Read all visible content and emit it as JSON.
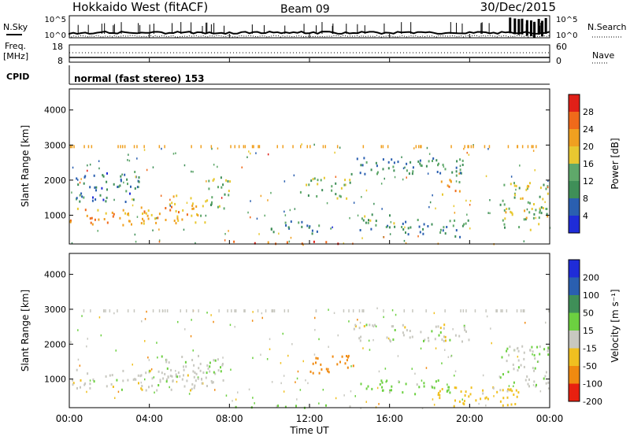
{
  "header": {
    "station": "Hokkaido West (fitACF)",
    "beam": "Beam 09",
    "date": "30/Dec/2015"
  },
  "params": {
    "nsky_label": "N.Sky",
    "nsky_ticks": [
      "10^5",
      "10^0"
    ],
    "nsearch_label": "N.Search",
    "nsearch_ticks": [
      "10^5",
      "10^0"
    ],
    "freq_label": "Freq.",
    "freq_unit": "[MHz]",
    "freq_ticks": [
      "18",
      "8"
    ],
    "nave_label": "Nave",
    "nave_ticks": [
      "60",
      "0"
    ],
    "cpid_label": "CPID",
    "cpid_value": "normal (fast stereo) 153"
  },
  "axes": {
    "time_ticks": [
      "00:00",
      "04:00",
      "08:00",
      "12:00",
      "16:00",
      "20:00",
      "00:00"
    ],
    "xlabel": "Time UT",
    "range_ticks": [
      "1000",
      "2000",
      "3000",
      "4000"
    ],
    "ylabel": "Slant Range [km]"
  },
  "colorbars": {
    "power": {
      "label": "Power [dB]",
      "ticks": [
        "4",
        "8",
        "12",
        "16",
        "20",
        "24",
        "28"
      ],
      "colors": [
        "#1f2cd8",
        "#2a5fb0",
        "#3f8f58",
        "#5fa86a",
        "#e8c830",
        "#f0a020",
        "#f06a1a",
        "#e02018"
      ]
    },
    "velocity": {
      "label": "Velocity [m s⁻¹]",
      "ticks": [
        "200",
        "100",
        "50",
        "15",
        "-15",
        "-50",
        "-100",
        "-200"
      ],
      "colors": [
        "#1f2cd8",
        "#2a5fb0",
        "#3f8f58",
        "#6cd040",
        "#c8c8c0",
        "#f0c020",
        "#f08a10",
        "#e82010"
      ]
    }
  },
  "chart_data": [
    {
      "type": "heatmap",
      "title": "Power",
      "xlabel": "Time UT",
      "ylabel": "Slant Range [km]",
      "xlim": [
        "00:00",
        "24:00"
      ],
      "ylim": [
        180,
        4600
      ],
      "zlabel": "Power [dB]",
      "zlim": [
        0,
        32
      ],
      "bands": [
        {
          "t0": 0.0,
          "t1": 4.5,
          "r0": 700,
          "r1": 1250,
          "value": 22
        },
        {
          "t0": 4.5,
          "t1": 6.8,
          "r0": 800,
          "r1": 1600,
          "value": 20
        },
        {
          "t0": 6.8,
          "t1": 8.0,
          "r0": 1200,
          "r1": 2200,
          "value": 14
        },
        {
          "t0": 0.3,
          "t1": 3.5,
          "r0": 1400,
          "r1": 2300,
          "value": 8
        },
        {
          "t0": 8.0,
          "t1": 14.0,
          "r0": 200,
          "r1": 280,
          "value": 26
        },
        {
          "t0": 10.0,
          "t1": 12.5,
          "r0": 500,
          "r1": 900,
          "value": 10
        },
        {
          "t0": 11.5,
          "t1": 14.0,
          "r0": 1500,
          "r1": 2100,
          "value": 14
        },
        {
          "t0": 14.0,
          "t1": 20.0,
          "r0": 2200,
          "r1": 2700,
          "value": 10
        },
        {
          "t0": 14.5,
          "t1": 16.5,
          "r0": 600,
          "r1": 1100,
          "value": 12
        },
        {
          "t0": 16.5,
          "t1": 20.0,
          "r0": 400,
          "r1": 900,
          "value": 10
        },
        {
          "t0": 18.5,
          "t1": 19.5,
          "r0": 1600,
          "r1": 2200,
          "value": 20
        },
        {
          "t0": 21.5,
          "t1": 24.0,
          "r0": 600,
          "r1": 2000,
          "value": 16
        }
      ]
    },
    {
      "type": "heatmap",
      "title": "Velocity",
      "xlabel": "Time UT",
      "ylabel": "Slant Range [km]",
      "xlim": [
        "00:00",
        "24:00"
      ],
      "ylim": [
        180,
        4600
      ],
      "zlabel": "Velocity [m s-1]",
      "zlim": [
        -250,
        250
      ],
      "bands": [
        {
          "t0": 0.0,
          "t1": 7.0,
          "r0": 700,
          "r1": 1300,
          "value": 0
        },
        {
          "t0": 4.5,
          "t1": 8.0,
          "r0": 900,
          "r1": 1700,
          "value": 5
        },
        {
          "t0": 8.0,
          "t1": 14.0,
          "r0": 200,
          "r1": 280,
          "value": 30
        },
        {
          "t0": 12.0,
          "t1": 14.5,
          "r0": 1200,
          "r1": 1700,
          "value": -80
        },
        {
          "t0": 14.0,
          "t1": 20.0,
          "r0": 2100,
          "r1": 2600,
          "value": 0
        },
        {
          "t0": 14.5,
          "t1": 19.0,
          "r0": 600,
          "r1": 1000,
          "value": 30
        },
        {
          "t0": 18.0,
          "t1": 22.5,
          "r0": 200,
          "r1": 800,
          "value": -30
        },
        {
          "t0": 21.5,
          "t1": 24.0,
          "r0": 800,
          "r1": 2000,
          "value": 10
        }
      ]
    }
  ]
}
